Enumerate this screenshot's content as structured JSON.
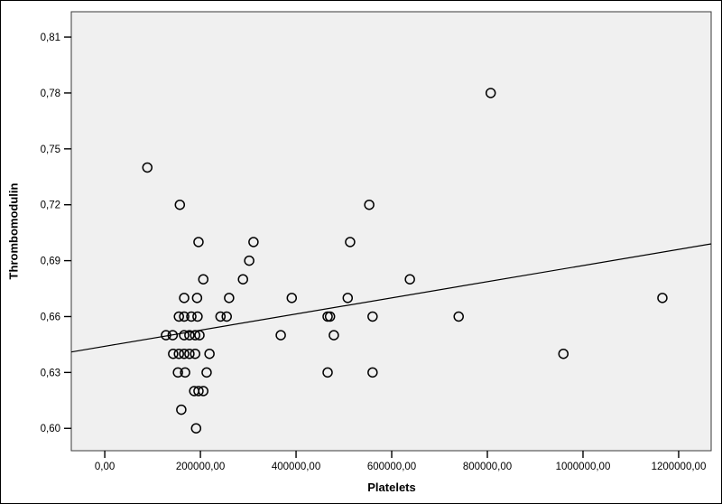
{
  "chart": {
    "x_axis_title": "Platelets",
    "y_axis_title": "Thrombomodulin"
  },
  "chart_data": {
    "type": "scatter",
    "title": "",
    "xlabel": "Platelets",
    "ylabel": "Thrombomodulin",
    "xlim": [
      -70000,
      1268000
    ],
    "ylim": [
      0.588,
      0.8236
    ],
    "grid": false,
    "legend": false,
    "plot_bg_color": "#f0f0f0",
    "frame_color": "#3a3a3a",
    "marker": "open-circle",
    "marker_color": "#000000",
    "x_ticks": {
      "values": [
        0,
        200000,
        400000,
        600000,
        800000,
        1000000,
        1200000
      ],
      "labels": [
        "0,00",
        "200000,00",
        "400000,00",
        "600000,00",
        "800000,00",
        "1000000,00",
        "1200000,00"
      ]
    },
    "y_ticks": {
      "values": [
        0.6,
        0.63,
        0.66,
        0.69,
        0.72,
        0.75,
        0.78,
        0.81
      ],
      "labels": [
        "0,60",
        "0,63",
        "0,66",
        "0,69",
        "0,72",
        "0,75",
        "0,78",
        "0,81"
      ]
    },
    "points": [
      [
        807000,
        0.78
      ],
      [
        89000,
        0.74
      ],
      [
        157000,
        0.72
      ],
      [
        553000,
        0.72
      ],
      [
        196000,
        0.7
      ],
      [
        311000,
        0.7
      ],
      [
        513000,
        0.7
      ],
      [
        302000,
        0.69
      ],
      [
        206000,
        0.68
      ],
      [
        289000,
        0.68
      ],
      [
        638000,
        0.68
      ],
      [
        166000,
        0.67
      ],
      [
        193000,
        0.67
      ],
      [
        260000,
        0.67
      ],
      [
        391000,
        0.67
      ],
      [
        508000,
        0.67
      ],
      [
        1166000,
        0.67
      ],
      [
        155000,
        0.66
      ],
      [
        166000,
        0.66
      ],
      [
        181000,
        0.66
      ],
      [
        194000,
        0.66
      ],
      [
        242000,
        0.66
      ],
      [
        255000,
        0.66
      ],
      [
        466000,
        0.66
      ],
      [
        471000,
        0.66
      ],
      [
        560000,
        0.66
      ],
      [
        740000,
        0.66
      ],
      [
        128000,
        0.65
      ],
      [
        142000,
        0.65
      ],
      [
        166000,
        0.65
      ],
      [
        177000,
        0.65
      ],
      [
        189000,
        0.65
      ],
      [
        198000,
        0.65
      ],
      [
        368000,
        0.65
      ],
      [
        479000,
        0.65
      ],
      [
        143000,
        0.64
      ],
      [
        155000,
        0.64
      ],
      [
        166000,
        0.64
      ],
      [
        177000,
        0.64
      ],
      [
        189000,
        0.64
      ],
      [
        219000,
        0.64
      ],
      [
        959000,
        0.64
      ],
      [
        153000,
        0.63
      ],
      [
        168000,
        0.63
      ],
      [
        213000,
        0.63
      ],
      [
        466000,
        0.63
      ],
      [
        560000,
        0.63
      ],
      [
        187000,
        0.62
      ],
      [
        196000,
        0.62
      ],
      [
        206000,
        0.62
      ],
      [
        160000,
        0.61
      ],
      [
        191000,
        0.6
      ]
    ],
    "fit_line": {
      "x1": -70000,
      "y1": 0.641,
      "x2": 1268000,
      "y2": 0.699
    }
  }
}
